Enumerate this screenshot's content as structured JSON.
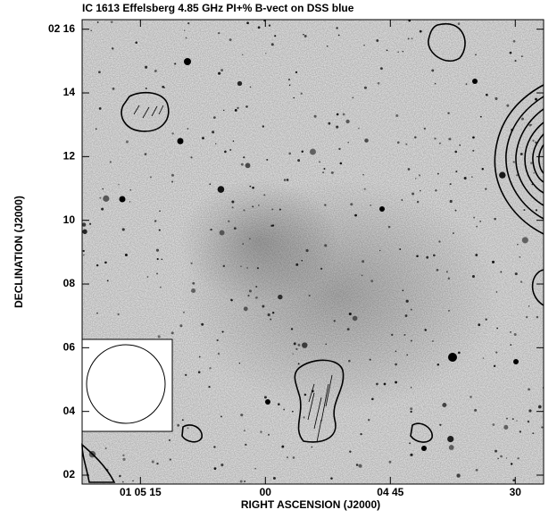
{
  "chart_data": {
    "type": "image",
    "title": "IC 1613 Effelsberg 4.85 GHz PI+% B-vect on DSS blue",
    "xlabel": "RIGHT ASCENSION (J2000)",
    "ylabel": "DECLINATION (J2000)",
    "xlim": [
      82,
      26.6
    ],
    "xticks": [
      {
        "value": 75,
        "label": "01 05 15"
      },
      {
        "value": 60,
        "label": "00"
      },
      {
        "value": 45,
        "label": "04 45"
      },
      30
    ],
    "ylim": [
      1.72,
      16.3
    ],
    "yticks": [
      {
        "value": 2,
        "label": "02"
      },
      {
        "value": 4,
        "label": "04"
      },
      {
        "value": 6,
        "label": "06"
      },
      {
        "value": 8,
        "label": "08"
      },
      10,
      12,
      14,
      {
        "value": 16,
        "label": "02 16"
      }
    ]
  }
}
